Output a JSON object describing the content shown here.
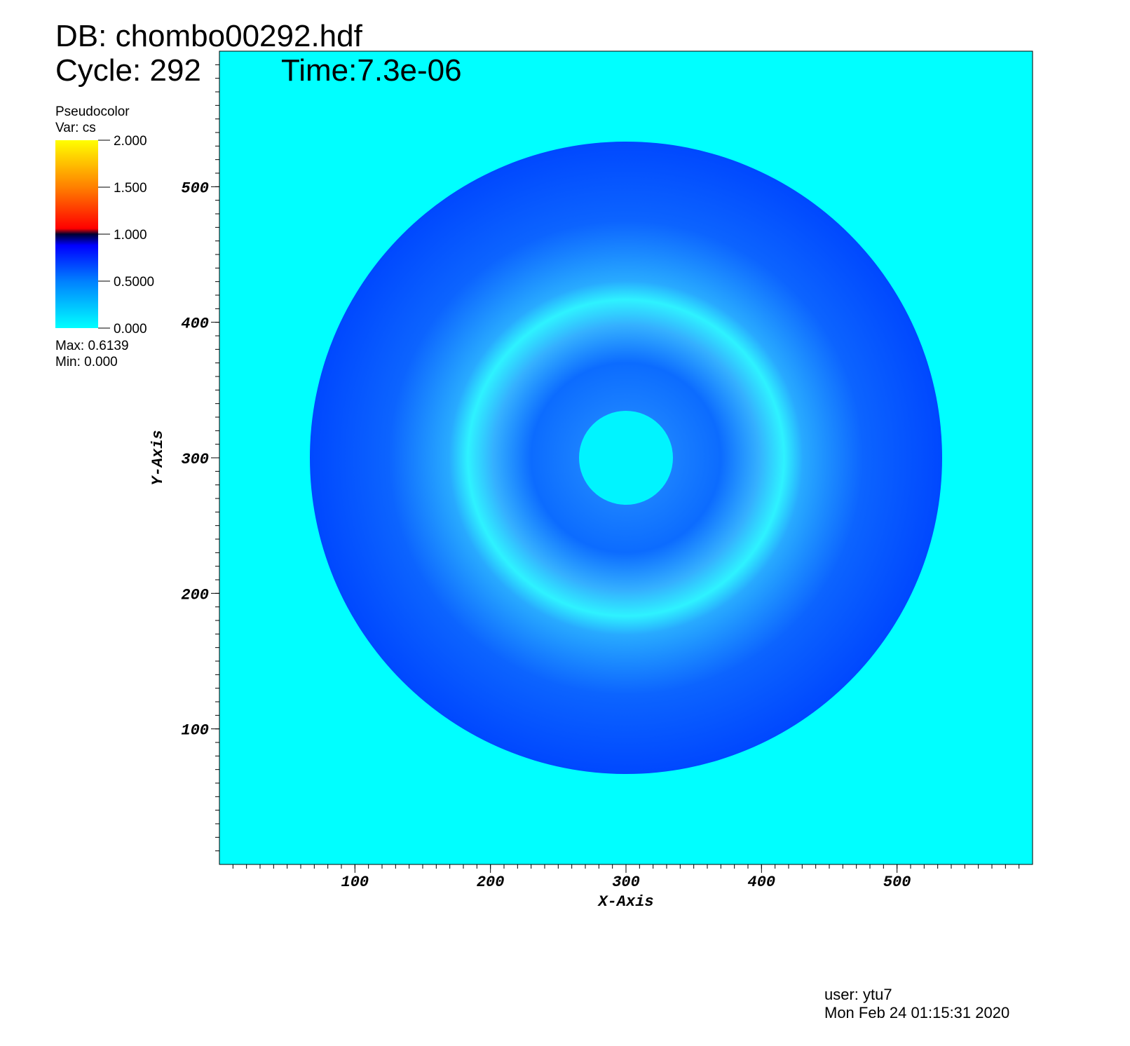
{
  "chart_data": {
    "type": "pseudocolor",
    "db": "DB: chombo00292.hdf",
    "cycle": "Cycle: 292",
    "time": "Time:7.3e-06",
    "plot_name": "Pseudocolor",
    "variable": "Var: cs",
    "max_label": "Max:  0.6139",
    "min_label": "Min:  0.000",
    "user": "user: ytu7",
    "date": "Mon Feb 24 01:15:31 2020",
    "xlabel": "X-Axis",
    "ylabel": "Y-Axis",
    "xlim": [
      0,
      600
    ],
    "ylim": [
      0,
      600
    ],
    "xticks": [
      100,
      200,
      300,
      400,
      500
    ],
    "yticks": [
      100,
      200,
      300,
      400,
      500
    ],
    "minor_tick_step": 10,
    "clim": [
      0,
      2
    ],
    "cticks": [
      {
        "value": 0,
        "label": "0.000"
      },
      {
        "value": 0.5,
        "label": "0.5000"
      },
      {
        "value": 1,
        "label": "1.000"
      },
      {
        "value": 1.5,
        "label": "1.500"
      },
      {
        "value": 2,
        "label": "2.000"
      }
    ]
  }
}
